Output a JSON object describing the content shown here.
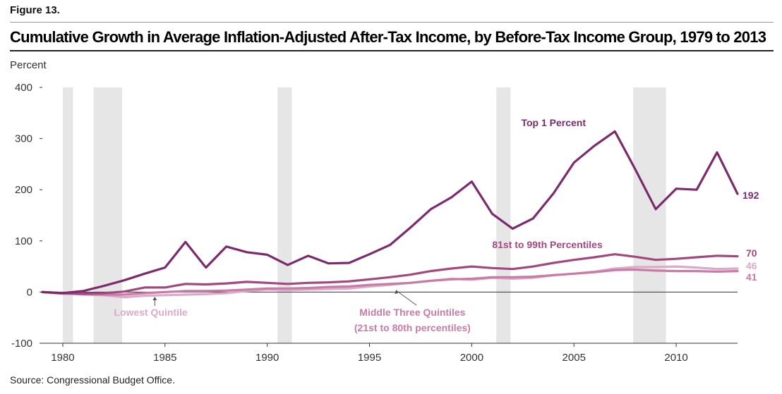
{
  "figure_label": "Figure 13.",
  "source": "Source: Congressional Budget Office.",
  "colors": {
    "top1": "#7b2a6e",
    "p81_99": "#a2487f",
    "middle": "#c77ba6",
    "lowest": "#dcaac8",
    "recession": "#e6e6e6",
    "axis": "#333333",
    "zero_line": "#333333"
  },
  "chart_data": {
    "type": "line",
    "title": "Cumulative Growth in Average Inflation-Adjusted After-Tax Income, by Before-Tax Income Group, 1979 to 2013",
    "ylabel": "Percent",
    "xlabel": "",
    "xlim": [
      1979,
      2013
    ],
    "ylim": [
      -100,
      400
    ],
    "y_ticks": [
      400,
      300,
      200,
      100,
      0,
      -100
    ],
    "x_ticks": [
      1980,
      1985,
      1990,
      1995,
      2000,
      2005,
      2010
    ],
    "x_tick_labels": [
      "1980",
      "1985",
      "1990",
      "1995",
      "2000",
      "2005",
      "2010"
    ],
    "recessions": [
      [
        1980.0,
        1980.5
      ],
      [
        1981.5,
        1982.9
      ],
      [
        1990.5,
        1991.2
      ],
      [
        2001.2,
        2001.9
      ],
      [
        2007.9,
        2009.5
      ]
    ],
    "x": [
      1979,
      1980,
      1981,
      1982,
      1983,
      1984,
      1985,
      1986,
      1987,
      1988,
      1989,
      1990,
      1991,
      1992,
      1993,
      1994,
      1995,
      1996,
      1997,
      1998,
      1999,
      2000,
      2001,
      2002,
      2003,
      2004,
      2005,
      2006,
      2007,
      2008,
      2009,
      2010,
      2011,
      2012,
      2013
    ],
    "series": [
      {
        "name": "Top 1 Percent",
        "color_key": "top1",
        "values": [
          0,
          -2,
          2,
          12,
          23,
          36,
          48,
          98,
          48,
          89,
          78,
          73,
          53,
          71,
          56,
          57,
          74,
          92,
          126,
          162,
          185,
          216,
          153,
          124,
          144,
          193,
          253,
          286,
          314,
          240,
          162,
          202,
          200,
          273,
          192
        ],
        "end_label": "192",
        "label": "Top 1 Percent"
      },
      {
        "name": "81st to 99th Percentiles",
        "color_key": "p81_99",
        "values": [
          0,
          -2,
          -3,
          -2,
          1,
          9,
          9,
          16,
          15,
          17,
          20,
          18,
          16,
          18,
          19,
          21,
          25,
          29,
          34,
          41,
          46,
          50,
          47,
          45,
          50,
          57,
          63,
          68,
          74,
          69,
          63,
          65,
          68,
          71,
          70
        ],
        "end_label": "70",
        "label": "81st to 99th Percentiles"
      },
      {
        "name": "Middle Three Quintiles (21st to 80th percentiles)",
        "color_key": "middle",
        "values": [
          0,
          -3,
          -4,
          -5,
          -5,
          -2,
          0,
          2,
          2,
          3,
          5,
          7,
          7,
          8,
          10,
          11,
          14,
          16,
          18,
          22,
          25,
          26,
          29,
          29,
          30,
          33,
          36,
          39,
          43,
          44,
          42,
          41,
          41,
          40,
          41
        ],
        "end_label": "41",
        "label": "Middle Three Quintiles",
        "label2": "(21st to 80th percentiles)"
      },
      {
        "name": "Lowest Quintile",
        "color_key": "lowest",
        "values": [
          0,
          -2,
          -5,
          -6,
          -10,
          -7,
          -6,
          -5,
          -4,
          -2,
          2,
          5,
          4,
          5,
          6,
          7,
          11,
          14,
          18,
          22,
          26,
          24,
          28,
          26,
          28,
          33,
          36,
          40,
          46,
          49,
          49,
          50,
          48,
          45,
          46
        ],
        "end_label": "46",
        "label": "Lowest Quintile"
      }
    ]
  }
}
